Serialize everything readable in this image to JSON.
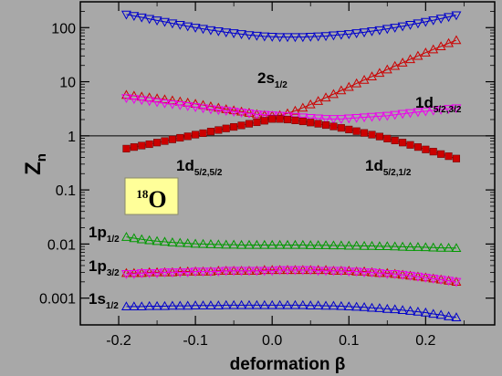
{
  "chart_data": {
    "type": "scatter",
    "title": "",
    "xlabel": "deformation β",
    "ylabel": "Z",
    "ylabel_sub": "n",
    "xscale": "linear",
    "yscale": "log",
    "xlim": [
      -0.25,
      0.29
    ],
    "ylim": [
      0.00032,
      300
    ],
    "grid": false,
    "reference_line_y": 1,
    "x_ticks": [
      -0.2,
      -0.1,
      0.0,
      0.1,
      0.2
    ],
    "x_tick_labels": [
      "-0.2",
      "-0.1",
      "0.0",
      "0.1",
      "0.2"
    ],
    "y_ticks": [
      0.001,
      0.01,
      0.1,
      1,
      10,
      100
    ],
    "y_tick_labels": [
      "0.001",
      "0.01",
      "0.1",
      "1",
      "10",
      "100"
    ],
    "nucleus_label": {
      "mass": "18",
      "symbol": "O"
    },
    "x": [
      -0.19,
      -0.18,
      -0.17,
      -0.16,
      -0.15,
      -0.14,
      -0.13,
      -0.12,
      -0.11,
      -0.1,
      -0.09,
      -0.08,
      -0.07,
      -0.06,
      -0.05,
      -0.04,
      -0.03,
      -0.02,
      -0.01,
      0.0,
      0.01,
      0.02,
      0.03,
      0.04,
      0.05,
      0.06,
      0.07,
      0.08,
      0.09,
      0.1,
      0.11,
      0.12,
      0.13,
      0.14,
      0.15,
      0.16,
      0.17,
      0.18,
      0.19,
      0.2,
      0.21,
      0.22,
      0.23,
      0.24
    ],
    "series": [
      {
        "label_main": "2s",
        "label_sub": "1/2",
        "color": "#0000cc",
        "marker": "triangle-down",
        "values": [
          175,
          165,
          155,
          145,
          136,
          128,
          120,
          113,
          106,
          100,
          95,
          90,
          86,
          82,
          79,
          76,
          73,
          71,
          69,
          68,
          67,
          67,
          67,
          67,
          68,
          69,
          70,
          72,
          74,
          76,
          79,
          82,
          86,
          90,
          95,
          100,
          106,
          113,
          120,
          128,
          137,
          147,
          158,
          170
        ]
      },
      {
        "label_main": "1d",
        "label_sub": "5/2,3/2",
        "color": "#cc0000",
        "marker": "triangle-up",
        "values": [
          5.7,
          5.5,
          5.3,
          5.1,
          4.9,
          4.7,
          4.5,
          4.3,
          4.1,
          3.9,
          3.7,
          3.5,
          3.3,
          3.1,
          2.95,
          2.8,
          2.65,
          2.5,
          2.4,
          2.35,
          2.4,
          2.6,
          2.9,
          3.3,
          3.8,
          4.4,
          5.1,
          5.9,
          6.9,
          8.0,
          9.3,
          10.8,
          12.5,
          14.5,
          16.8,
          19.5,
          22.5,
          26,
          30,
          34.5,
          39.5,
          45,
          51.5,
          58.5
        ]
      },
      {
        "label_main": "",
        "label_sub": "",
        "color": "#ee00ee",
        "marker": "triangle-down",
        "values": [
          5.0,
          4.8,
          4.6,
          4.4,
          4.2,
          4.0,
          3.85,
          3.7,
          3.55,
          3.4,
          3.25,
          3.1,
          3.0,
          2.9,
          2.8,
          2.7,
          2.6,
          2.5,
          2.45,
          2.4,
          2.35,
          2.3,
          2.25,
          2.2,
          2.15,
          2.1,
          2.05,
          2.05,
          2.05,
          2.1,
          2.15,
          2.2,
          2.25,
          2.3,
          2.35,
          2.45,
          2.55,
          2.65,
          2.75,
          2.85,
          2.95,
          3.05,
          3.15,
          3.25
        ]
      },
      {
        "label_main": "1d",
        "label_sub": "5/2,5/2",
        "color": "#cc0000",
        "marker": "square",
        "values": [
          0.58,
          0.62,
          0.66,
          0.7,
          0.75,
          0.8,
          0.86,
          0.92,
          0.98,
          1.05,
          1.12,
          1.2,
          1.28,
          1.37,
          1.46,
          1.56,
          1.67,
          1.78,
          1.9,
          2.05,
          2.05,
          2.0,
          1.93,
          1.85,
          1.76,
          1.67,
          1.58,
          1.49,
          1.4,
          1.31,
          1.22,
          1.13,
          1.05,
          0.97,
          0.89,
          0.82,
          0.75,
          0.68,
          0.62,
          0.56,
          0.51,
          0.46,
          0.42,
          0.38
        ]
      },
      {
        "label_main": "1d",
        "label_sub": "5/2,1/2",
        "color": "#cc0000",
        "marker": "none",
        "values": []
      },
      {
        "label_main": "1p",
        "label_sub": "1/2",
        "color": "#009900",
        "marker": "triangle-up",
        "values": [
          0.0135,
          0.0128,
          0.0122,
          0.0117,
          0.0113,
          0.011,
          0.0107,
          0.0105,
          0.0103,
          0.0101,
          0.01,
          0.0099,
          0.0098,
          0.0097,
          0.0097,
          0.0096,
          0.0096,
          0.0096,
          0.0096,
          0.0096,
          0.0096,
          0.0096,
          0.0096,
          0.0096,
          0.0095,
          0.0095,
          0.0095,
          0.0094,
          0.0094,
          0.0093,
          0.0093,
          0.0092,
          0.0092,
          0.0091,
          0.0091,
          0.009,
          0.0089,
          0.0088,
          0.0088,
          0.0087,
          0.0086,
          0.0085,
          0.0085,
          0.0084
        ]
      },
      {
        "label_main": "1p",
        "label_sub": "3/2",
        "color": "#cc0000",
        "marker": "triangle-up",
        "values": [
          0.0029,
          0.0029,
          0.0029,
          0.003,
          0.003,
          0.003,
          0.003,
          0.0031,
          0.0031,
          0.0031,
          0.0031,
          0.0031,
          0.0032,
          0.0032,
          0.0032,
          0.0032,
          0.0032,
          0.0032,
          0.0033,
          0.0033,
          0.0033,
          0.0033,
          0.0033,
          0.0033,
          0.0033,
          0.0033,
          0.0033,
          0.0032,
          0.0032,
          0.0032,
          0.0031,
          0.0031,
          0.003,
          0.0029,
          0.0029,
          0.0028,
          0.0027,
          0.0026,
          0.0025,
          0.0024,
          0.0023,
          0.0022,
          0.0021,
          0.002
        ]
      },
      {
        "label_main": "",
        "label_sub": "",
        "color": "#ee00ee",
        "marker": "triangle-down",
        "values": [
          0.0028,
          0.0028,
          0.0029,
          0.0029,
          0.0029,
          0.003,
          0.003,
          0.003,
          0.003,
          0.0031,
          0.0031,
          0.0031,
          0.0031,
          0.0032,
          0.0032,
          0.0032,
          0.0032,
          0.0032,
          0.0032,
          0.0032,
          0.0033,
          0.0033,
          0.0033,
          0.0033,
          0.0033,
          0.0032,
          0.0032,
          0.0032,
          0.0032,
          0.0031,
          0.0031,
          0.003,
          0.003,
          0.0029,
          0.0028,
          0.0028,
          0.0027,
          0.0026,
          0.0025,
          0.0024,
          0.0023,
          0.0022,
          0.0021,
          0.002
        ]
      },
      {
        "label_main": "1s",
        "label_sub": "1/2",
        "color": "#0000cc",
        "marker": "triangle-up",
        "values": [
          0.0007,
          0.0007,
          0.0007,
          0.00071,
          0.00071,
          0.00071,
          0.00072,
          0.00072,
          0.00072,
          0.00073,
          0.00073,
          0.00073,
          0.00073,
          0.00074,
          0.00074,
          0.00074,
          0.00074,
          0.00074,
          0.00074,
          0.00074,
          0.00074,
          0.00074,
          0.00074,
          0.00074,
          0.00073,
          0.00073,
          0.00072,
          0.00072,
          0.00071,
          0.0007,
          0.00069,
          0.00068,
          0.00066,
          0.00065,
          0.00063,
          0.00062,
          0.0006,
          0.00058,
          0.00056,
          0.00054,
          0.00051,
          0.00049,
          0.00046,
          0.00044
        ]
      }
    ]
  }
}
